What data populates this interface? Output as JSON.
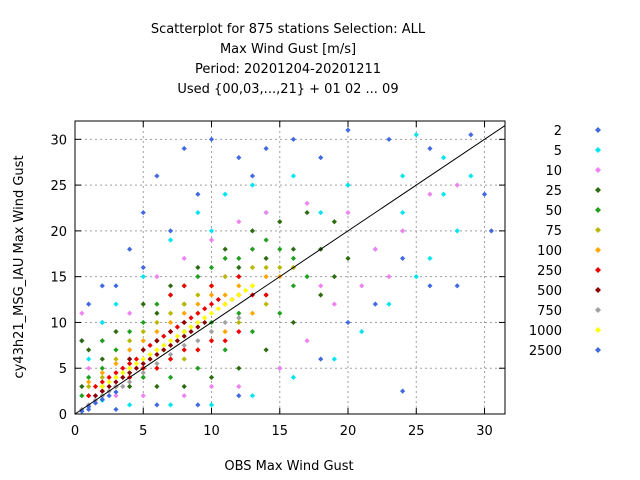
{
  "chart_data": {
    "type": "scatter",
    "title_lines": [
      "Scatterplot for  875 stations Selection: ALL",
      "Max Wind Gust [m/s]",
      "Period: 20201204-20201211",
      "Used {00,03,...,21} + 01 02 ... 09"
    ],
    "xlabel": "OBS Max Wind Gust",
    "ylabel": "cy43h21_MSG_IAU Max Wind Gust",
    "xlim": [
      0,
      31.5
    ],
    "ylim": [
      0,
      32
    ],
    "xticks": [
      0,
      5,
      10,
      15,
      20,
      25,
      30
    ],
    "yticks": [
      0,
      5,
      10,
      15,
      20,
      25,
      30
    ],
    "grid": true,
    "legend_position": "right",
    "diagonal_line": true,
    "density_classes": [
      {
        "label": "2",
        "color": "#4169e1"
      },
      {
        "label": "5",
        "color": "#00e5ee"
      },
      {
        "label": "10",
        "color": "#ee82ee"
      },
      {
        "label": "25",
        "color": "#2e6b10"
      },
      {
        "label": "50",
        "color": "#1fa01f"
      },
      {
        "label": "75",
        "color": "#b8b800"
      },
      {
        "label": "100",
        "color": "#ffa500"
      },
      {
        "label": "250",
        "color": "#ee0000"
      },
      {
        "label": "500",
        "color": "#8b0000"
      },
      {
        "label": "750",
        "color": "#a0a0a0"
      },
      {
        "label": "1000",
        "color": "#ffff00"
      },
      {
        "label": "2500",
        "color": "#4169e1"
      }
    ],
    "density_bands": [
      {
        "class": "2",
        "points": [
          [
            0.5,
            8
          ],
          [
            1,
            12
          ],
          [
            2,
            14
          ],
          [
            4,
            18
          ],
          [
            5,
            22
          ],
          [
            6,
            26
          ],
          [
            8,
            29
          ],
          [
            10,
            30
          ],
          [
            12,
            28
          ],
          [
            14,
            29
          ],
          [
            16,
            30
          ],
          [
            20,
            31
          ],
          [
            23,
            30
          ],
          [
            26,
            29
          ],
          [
            29,
            30.5
          ],
          [
            30,
            24
          ],
          [
            30.5,
            20
          ],
          [
            28,
            14
          ],
          [
            26,
            14
          ],
          [
            24,
            17
          ],
          [
            22,
            12
          ],
          [
            20,
            10
          ],
          [
            18,
            6
          ],
          [
            15,
            5
          ],
          [
            12,
            2
          ],
          [
            9,
            1
          ],
          [
            6,
            1
          ],
          [
            3,
            0.5
          ],
          [
            1,
            0.5
          ],
          [
            24,
            2.5
          ],
          [
            2,
            10
          ],
          [
            3,
            14
          ],
          [
            5,
            16
          ],
          [
            7,
            20
          ],
          [
            9,
            24
          ],
          [
            13,
            26
          ],
          [
            18,
            28
          ]
        ]
      },
      {
        "class": "5",
        "points": [
          [
            1,
            6
          ],
          [
            2,
            10
          ],
          [
            3,
            12
          ],
          [
            5,
            15
          ],
          [
            7,
            19
          ],
          [
            9,
            22
          ],
          [
            11,
            24
          ],
          [
            13,
            25
          ],
          [
            16,
            26
          ],
          [
            20,
            25
          ],
          [
            24,
            26
          ],
          [
            27,
            28
          ],
          [
            29,
            26
          ],
          [
            28,
            20
          ],
          [
            26,
            17
          ],
          [
            25,
            15
          ],
          [
            23,
            12
          ],
          [
            21,
            9
          ],
          [
            19,
            6
          ],
          [
            16,
            4
          ],
          [
            13,
            2
          ],
          [
            10,
            1
          ],
          [
            7,
            1
          ],
          [
            4,
            1
          ],
          [
            2,
            1.5
          ],
          [
            25,
            30.5
          ],
          [
            10,
            20
          ],
          [
            14,
            22
          ],
          [
            18,
            22
          ],
          [
            22,
            18
          ],
          [
            24,
            22
          ],
          [
            27,
            24
          ]
        ]
      },
      {
        "class": "10",
        "points": [
          [
            1,
            5
          ],
          [
            2,
            8
          ],
          [
            4,
            11
          ],
          [
            6,
            15
          ],
          [
            8,
            17
          ],
          [
            10,
            19
          ],
          [
            12,
            21
          ],
          [
            14,
            22
          ],
          [
            17,
            23
          ],
          [
            20,
            22
          ],
          [
            22,
            18
          ],
          [
            24,
            20
          ],
          [
            26,
            24
          ],
          [
            28,
            25
          ],
          [
            23,
            15
          ],
          [
            21,
            14
          ],
          [
            19,
            12
          ],
          [
            17,
            8
          ],
          [
            15,
            5
          ],
          [
            12,
            3
          ],
          [
            10,
            3
          ],
          [
            8,
            2
          ],
          [
            5,
            2
          ],
          [
            3,
            2
          ],
          [
            0.5,
            11
          ],
          [
            11,
            15
          ],
          [
            13,
            18
          ],
          [
            16,
            16
          ],
          [
            18,
            14
          ]
        ]
      },
      {
        "class": "25",
        "points": [
          [
            0.5,
            3
          ],
          [
            1,
            7
          ],
          [
            2,
            6
          ],
          [
            3,
            9
          ],
          [
            5,
            12
          ],
          [
            7,
            14
          ],
          [
            9,
            16
          ],
          [
            11,
            18
          ],
          [
            13,
            20
          ],
          [
            15,
            21
          ],
          [
            17,
            22
          ],
          [
            19,
            21
          ],
          [
            20,
            17
          ],
          [
            18,
            13
          ],
          [
            16,
            10
          ],
          [
            14,
            7
          ],
          [
            12,
            5
          ],
          [
            10,
            4
          ],
          [
            8,
            3
          ],
          [
            6,
            3
          ],
          [
            4,
            3
          ],
          [
            2,
            2
          ],
          [
            0.5,
            8
          ],
          [
            6,
            11
          ],
          [
            8,
            12
          ],
          [
            10,
            14
          ],
          [
            12,
            16
          ],
          [
            14,
            17
          ],
          [
            16,
            18
          ],
          [
            18,
            18
          ],
          [
            19,
            15
          ]
        ]
      },
      {
        "class": "50",
        "points": [
          [
            0.5,
            2
          ],
          [
            1,
            4
          ],
          [
            2,
            5
          ],
          [
            3,
            7
          ],
          [
            4,
            9
          ],
          [
            5,
            10
          ],
          [
            6,
            12
          ],
          [
            7,
            13
          ],
          [
            8,
            14
          ],
          [
            9,
            15
          ],
          [
            10,
            16
          ],
          [
            11,
            17
          ],
          [
            12,
            17
          ],
          [
            13,
            18
          ],
          [
            14,
            19
          ],
          [
            15,
            18
          ],
          [
            16,
            17
          ],
          [
            17,
            15
          ],
          [
            15,
            11
          ],
          [
            13,
            9
          ],
          [
            11,
            7
          ],
          [
            9,
            5
          ],
          [
            7,
            4
          ],
          [
            5,
            4
          ],
          [
            3,
            3
          ],
          [
            1,
            2
          ],
          [
            2,
            8
          ],
          [
            4,
            6
          ],
          [
            6,
            8
          ],
          [
            8,
            9
          ],
          [
            10,
            10
          ],
          [
            12,
            11
          ],
          [
            14,
            13
          ],
          [
            16,
            14
          ]
        ]
      },
      {
        "class": "75",
        "points": [
          [
            1,
            3
          ],
          [
            2,
            4
          ],
          [
            3,
            6
          ],
          [
            4,
            8
          ],
          [
            5,
            9
          ],
          [
            6,
            10
          ],
          [
            7,
            11
          ],
          [
            8,
            12
          ],
          [
            9,
            13
          ],
          [
            10,
            14
          ],
          [
            11,
            15
          ],
          [
            12,
            15
          ],
          [
            13,
            16
          ],
          [
            14,
            16
          ],
          [
            15,
            16
          ],
          [
            16,
            16
          ],
          [
            14,
            12
          ],
          [
            12,
            10
          ],
          [
            10,
            8
          ],
          [
            8,
            6
          ],
          [
            6,
            5
          ],
          [
            4,
            4
          ],
          [
            2,
            3
          ],
          [
            12,
            13
          ],
          [
            13,
            14
          ]
        ]
      },
      {
        "class": "100",
        "points": [
          [
            1,
            3.5
          ],
          [
            2,
            4.5
          ],
          [
            3,
            5.5
          ],
          [
            4,
            7
          ],
          [
            5,
            8
          ],
          [
            6,
            9
          ],
          [
            7,
            10
          ],
          [
            8,
            11
          ],
          [
            9,
            12
          ],
          [
            10,
            13
          ],
          [
            11,
            13
          ],
          [
            12,
            14
          ],
          [
            13,
            14
          ],
          [
            14,
            15
          ],
          [
            15,
            15
          ],
          [
            13,
            11
          ],
          [
            11,
            9
          ],
          [
            9,
            7
          ],
          [
            7,
            6
          ],
          [
            5,
            5
          ],
          [
            3,
            4
          ]
        ]
      },
      {
        "class": "250",
        "points": [
          [
            1,
            2
          ],
          [
            1.5,
            3
          ],
          [
            2,
            3.5
          ],
          [
            2.5,
            4
          ],
          [
            3,
            4.5
          ],
          [
            3.5,
            5
          ],
          [
            4,
            5.5
          ],
          [
            4.5,
            6
          ],
          [
            5,
            7
          ],
          [
            5.5,
            7.5
          ],
          [
            6,
            8
          ],
          [
            6.5,
            8.5
          ],
          [
            7,
            9
          ],
          [
            7.5,
            9.5
          ],
          [
            8,
            10
          ],
          [
            8.5,
            10.5
          ],
          [
            9,
            11
          ],
          [
            9.5,
            11.5
          ],
          [
            10,
            12
          ],
          [
            10.5,
            12.5
          ],
          [
            11,
            12
          ],
          [
            11.5,
            12.5
          ],
          [
            12,
            13
          ],
          [
            13,
            13
          ],
          [
            12,
            9
          ],
          [
            11,
            8
          ],
          [
            10,
            8
          ],
          [
            9,
            7
          ],
          [
            8,
            7
          ],
          [
            7,
            6
          ],
          [
            6,
            5
          ],
          [
            5,
            5
          ],
          [
            4,
            4
          ],
          [
            3,
            3
          ],
          [
            2,
            2.5
          ],
          [
            14,
            13
          ],
          [
            12,
            15
          ],
          [
            10,
            14
          ],
          [
            8,
            14
          ],
          [
            7,
            13
          ]
        ]
      },
      {
        "class": "500",
        "points": [
          [
            1.5,
            2
          ],
          [
            2,
            2.5
          ],
          [
            2.5,
            3
          ],
          [
            3,
            3.5
          ],
          [
            3.5,
            4
          ],
          [
            4,
            4.5
          ],
          [
            4.5,
            5
          ],
          [
            5,
            5.5
          ],
          [
            5.5,
            6
          ],
          [
            6,
            6.5
          ],
          [
            6.5,
            7
          ],
          [
            7,
            7.5
          ],
          [
            7.5,
            8
          ],
          [
            8,
            8.5
          ],
          [
            8.5,
            9
          ],
          [
            9,
            9.5
          ],
          [
            9.5,
            10
          ],
          [
            4,
            6
          ],
          [
            5,
            7
          ],
          [
            6,
            8
          ],
          [
            7,
            9
          ],
          [
            8,
            10
          ]
        ]
      },
      {
        "class": "750",
        "points": [
          [
            0.5,
            0.5
          ],
          [
            1,
            1
          ],
          [
            1.5,
            1.5
          ],
          [
            2,
            2
          ],
          [
            2.5,
            2.5
          ],
          [
            3,
            3
          ],
          [
            3.5,
            3
          ],
          [
            4,
            3.5
          ],
          [
            5,
            4.5
          ],
          [
            6,
            5.5
          ],
          [
            7,
            6.5
          ],
          [
            8,
            7.5
          ],
          [
            9,
            8
          ],
          [
            10,
            9
          ],
          [
            11,
            10
          ],
          [
            12,
            10.5
          ]
        ]
      },
      {
        "class": "1000",
        "points": [
          [
            2,
            3
          ],
          [
            2.5,
            3.5
          ],
          [
            3,
            4
          ],
          [
            3.5,
            4.5
          ],
          [
            4,
            5
          ],
          [
            4.5,
            5.5
          ],
          [
            5,
            6
          ],
          [
            5.5,
            6.5
          ],
          [
            6,
            7
          ],
          [
            6.5,
            7.5
          ],
          [
            7,
            8
          ],
          [
            7.5,
            8.5
          ],
          [
            8,
            9
          ],
          [
            8.5,
            9.5
          ],
          [
            9,
            10
          ],
          [
            9.5,
            10.5
          ],
          [
            10,
            11
          ],
          [
            10.5,
            11.5
          ],
          [
            11,
            12
          ],
          [
            11.5,
            12.5
          ],
          [
            12,
            13
          ],
          [
            12.5,
            13.5
          ],
          [
            13,
            14
          ]
        ]
      },
      {
        "class": "2500",
        "points": [
          [
            0.5,
            0.3
          ],
          [
            1,
            0.8
          ],
          [
            1.5,
            1.2
          ],
          [
            2,
            1.6
          ],
          [
            2.5,
            2
          ],
          [
            3,
            2.4
          ]
        ]
      }
    ]
  }
}
